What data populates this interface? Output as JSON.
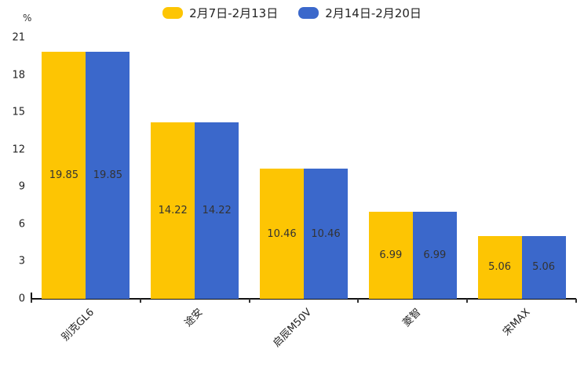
{
  "chart_data": {
    "type": "bar",
    "title": "",
    "unit": "%",
    "categories": [
      "别克GL6",
      "途安",
      "启辰M50V",
      "菱智",
      "宋MAX"
    ],
    "series": [
      {
        "name": "2月7日-2月13日",
        "color": "#FDC503",
        "values": [
          19.85,
          14.22,
          10.46,
          6.99,
          5.06
        ]
      },
      {
        "name": "2月14日-2月20日",
        "color": "#3B68CB",
        "values": [
          19.85,
          14.22,
          10.46,
          6.99,
          5.06
        ]
      }
    ],
    "yticks": [
      0,
      3,
      6,
      9,
      12,
      15,
      18,
      21
    ],
    "ylim": [
      0,
      21
    ],
    "value_labels_visible": true,
    "value_label_color": "#333333",
    "axis_color": "#111111",
    "legend_position": "top-center",
    "grid": false,
    "background_color": "#ffffff",
    "xlabel": "",
    "ylabel": "%"
  }
}
